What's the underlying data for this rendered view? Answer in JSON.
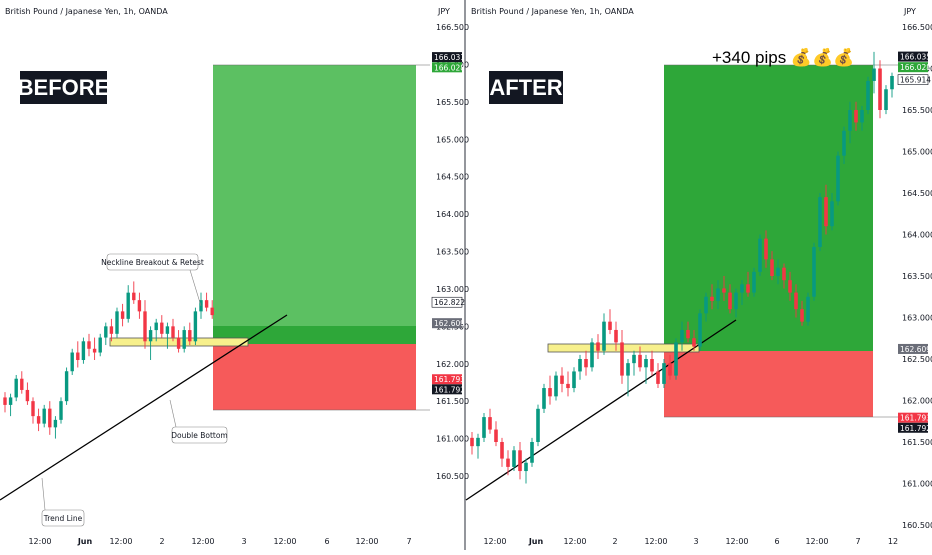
{
  "colors": {
    "up": "#089981",
    "down": "#f23645",
    "tp_zone_before": "#5cc062",
    "tp_zone_after": "#2ea739",
    "sl_zone": "#f65a5a",
    "neckline_fill": "#f7f08c",
    "badge_dark": "#131722",
    "badge_green": "#2ea739",
    "badge_red": "#f23645",
    "badge_gray": "#6a6d78"
  },
  "left_panel": {
    "title": "British Pound / Japanese Yen, 1h, OANDA",
    "currency": "JPY",
    "label": "BEFORE",
    "annotations": {
      "neckline": "Neckline Breakout & Retest",
      "double_bottom": "Double Bottom",
      "trend_line": "Trend Line"
    },
    "badges": {
      "tp_top": "166.031",
      "tp": "166.028",
      "entry_upper": "162.822",
      "entry": "162.609",
      "sl": "161.793",
      "sl_low": "161.792"
    }
  },
  "right_panel": {
    "title": "British Pound / Japanese Yen, 1h, OANDA",
    "currency": "JPY",
    "label": "AFTER",
    "headline": "+340 pips 💰💰💰",
    "badges": {
      "high": "166.035",
      "tp": "166.028",
      "last": "165.914",
      "entry": "162.609",
      "sl": "161.793",
      "sl_low": "161.792"
    }
  },
  "chart_data": [
    {
      "type": "candlestick",
      "title": "British Pound / Japanese Yen, 1h, OANDA",
      "y_unit": "JPY",
      "ylim": [
        160.3,
        166.7
      ],
      "y_ticks": [
        166.5,
        166.0,
        165.5,
        165.0,
        164.5,
        164.0,
        163.5,
        163.0,
        162.5,
        162.0,
        161.5,
        161.0,
        160.5
      ],
      "x_ticks": [
        "12:00",
        "Jun",
        "12:00",
        "2",
        "12:00",
        "3",
        "12:00",
        "6",
        "12:00",
        "7"
      ],
      "long_position": {
        "take_profit": 166.031,
        "entry": 162.609,
        "stop_loss": 161.793
      },
      "neckline_zone": [
        162.609,
        162.822
      ],
      "candles": [
        {
          "o": 161.55,
          "h": 161.62,
          "l": 161.35,
          "c": 161.45
        },
        {
          "o": 161.45,
          "h": 161.6,
          "l": 161.3,
          "c": 161.55
        },
        {
          "o": 161.55,
          "h": 161.85,
          "l": 161.5,
          "c": 161.8
        },
        {
          "o": 161.8,
          "h": 161.9,
          "l": 161.6,
          "c": 161.65
        },
        {
          "o": 161.65,
          "h": 161.75,
          "l": 161.45,
          "c": 161.5
        },
        {
          "o": 161.5,
          "h": 161.55,
          "l": 161.2,
          "c": 161.3
        },
        {
          "o": 161.3,
          "h": 161.4,
          "l": 161.1,
          "c": 161.2
        },
        {
          "o": 161.2,
          "h": 161.45,
          "l": 161.15,
          "c": 161.4
        },
        {
          "o": 161.4,
          "h": 161.5,
          "l": 161.05,
          "c": 161.15
        },
        {
          "o": 161.15,
          "h": 161.3,
          "l": 161.0,
          "c": 161.25
        },
        {
          "o": 161.25,
          "h": 161.55,
          "l": 161.2,
          "c": 161.5
        },
        {
          "o": 161.5,
          "h": 161.95,
          "l": 161.45,
          "c": 161.9
        },
        {
          "o": 161.9,
          "h": 162.2,
          "l": 161.85,
          "c": 162.15
        },
        {
          "o": 162.15,
          "h": 162.3,
          "l": 161.95,
          "c": 162.05
        },
        {
          "o": 162.05,
          "h": 162.35,
          "l": 162.0,
          "c": 162.3
        },
        {
          "o": 162.3,
          "h": 162.4,
          "l": 162.1,
          "c": 162.2
        },
        {
          "o": 162.2,
          "h": 162.35,
          "l": 162.05,
          "c": 162.15
        },
        {
          "o": 162.15,
          "h": 162.4,
          "l": 162.1,
          "c": 162.35
        },
        {
          "o": 162.35,
          "h": 162.55,
          "l": 162.25,
          "c": 162.5
        },
        {
          "o": 162.5,
          "h": 162.6,
          "l": 162.3,
          "c": 162.4
        },
        {
          "o": 162.4,
          "h": 162.75,
          "l": 162.35,
          "c": 162.7
        },
        {
          "o": 162.7,
          "h": 162.8,
          "l": 162.5,
          "c": 162.6
        },
        {
          "o": 162.6,
          "h": 163.05,
          "l": 162.55,
          "c": 162.95
        },
        {
          "o": 162.95,
          "h": 163.1,
          "l": 162.8,
          "c": 162.85
        },
        {
          "o": 162.85,
          "h": 162.95,
          "l": 162.6,
          "c": 162.7
        },
        {
          "o": 162.7,
          "h": 162.85,
          "l": 162.2,
          "c": 162.3
        },
        {
          "o": 162.3,
          "h": 162.5,
          "l": 162.05,
          "c": 162.45
        },
        {
          "o": 162.45,
          "h": 162.6,
          "l": 162.3,
          "c": 162.55
        },
        {
          "o": 162.55,
          "h": 162.65,
          "l": 162.35,
          "c": 162.4
        },
        {
          "o": 162.4,
          "h": 162.55,
          "l": 162.2,
          "c": 162.5
        },
        {
          "o": 162.5,
          "h": 162.6,
          "l": 162.3,
          "c": 162.35
        },
        {
          "o": 162.35,
          "h": 162.45,
          "l": 162.15,
          "c": 162.2
        },
        {
          "o": 162.2,
          "h": 162.5,
          "l": 162.15,
          "c": 162.45
        },
        {
          "o": 162.45,
          "h": 162.55,
          "l": 162.25,
          "c": 162.3
        },
        {
          "o": 162.3,
          "h": 162.75,
          "l": 162.25,
          "c": 162.7
        },
        {
          "o": 162.7,
          "h": 162.95,
          "l": 162.6,
          "c": 162.85
        },
        {
          "o": 162.85,
          "h": 162.95,
          "l": 162.7,
          "c": 162.75
        },
        {
          "o": 162.75,
          "h": 162.85,
          "l": 162.6,
          "c": 162.65
        }
      ]
    },
    {
      "type": "candlestick",
      "title": "British Pound / Japanese Yen, 1h, OANDA",
      "y_unit": "JPY",
      "ylim": [
        160.3,
        166.7
      ],
      "y_ticks": [
        166.5,
        166.0,
        165.5,
        165.0,
        164.5,
        164.0,
        163.5,
        163.0,
        162.5,
        162.0,
        161.5,
        161.0,
        160.5
      ],
      "x_ticks": [
        "12:00",
        "Jun",
        "12:00",
        "2",
        "12:00",
        "3",
        "12:00",
        "6",
        "12:00",
        "7",
        "12"
      ],
      "long_position": {
        "take_profit": 166.028,
        "entry": 162.609,
        "stop_loss": 161.793
      },
      "neckline_zone": [
        162.609,
        162.822
      ],
      "candles": [
        {
          "o": 161.55,
          "h": 161.62,
          "l": 161.35,
          "c": 161.45
        },
        {
          "o": 161.45,
          "h": 161.6,
          "l": 161.3,
          "c": 161.55
        },
        {
          "o": 161.55,
          "h": 161.85,
          "l": 161.5,
          "c": 161.8
        },
        {
          "o": 161.8,
          "h": 161.9,
          "l": 161.6,
          "c": 161.65
        },
        {
          "o": 161.65,
          "h": 161.75,
          "l": 161.45,
          "c": 161.5
        },
        {
          "o": 161.5,
          "h": 161.55,
          "l": 161.2,
          "c": 161.3
        },
        {
          "o": 161.3,
          "h": 161.4,
          "l": 161.1,
          "c": 161.2
        },
        {
          "o": 161.2,
          "h": 161.45,
          "l": 161.15,
          "c": 161.4
        },
        {
          "o": 161.4,
          "h": 161.5,
          "l": 161.05,
          "c": 161.15
        },
        {
          "o": 161.15,
          "h": 161.3,
          "l": 161.0,
          "c": 161.25
        },
        {
          "o": 161.25,
          "h": 161.55,
          "l": 161.2,
          "c": 161.5
        },
        {
          "o": 161.5,
          "h": 161.95,
          "l": 161.45,
          "c": 161.9
        },
        {
          "o": 161.9,
          "h": 162.2,
          "l": 161.85,
          "c": 162.15
        },
        {
          "o": 162.15,
          "h": 162.3,
          "l": 161.95,
          "c": 162.05
        },
        {
          "o": 162.05,
          "h": 162.35,
          "l": 162.0,
          "c": 162.3
        },
        {
          "o": 162.3,
          "h": 162.4,
          "l": 162.1,
          "c": 162.2
        },
        {
          "o": 162.2,
          "h": 162.35,
          "l": 162.05,
          "c": 162.15
        },
        {
          "o": 162.15,
          "h": 162.4,
          "l": 162.1,
          "c": 162.35
        },
        {
          "o": 162.35,
          "h": 162.55,
          "l": 162.25,
          "c": 162.5
        },
        {
          "o": 162.5,
          "h": 162.6,
          "l": 162.3,
          "c": 162.4
        },
        {
          "o": 162.4,
          "h": 162.75,
          "l": 162.35,
          "c": 162.7
        },
        {
          "o": 162.7,
          "h": 162.8,
          "l": 162.5,
          "c": 162.6
        },
        {
          "o": 162.6,
          "h": 163.05,
          "l": 162.55,
          "c": 162.95
        },
        {
          "o": 162.95,
          "h": 163.1,
          "l": 162.8,
          "c": 162.85
        },
        {
          "o": 162.85,
          "h": 162.95,
          "l": 162.6,
          "c": 162.7
        },
        {
          "o": 162.7,
          "h": 162.85,
          "l": 162.2,
          "c": 162.3
        },
        {
          "o": 162.3,
          "h": 162.5,
          "l": 162.05,
          "c": 162.45
        },
        {
          "o": 162.45,
          "h": 162.6,
          "l": 162.3,
          "c": 162.55
        },
        {
          "o": 162.55,
          "h": 162.65,
          "l": 162.35,
          "c": 162.4
        },
        {
          "o": 162.4,
          "h": 162.55,
          "l": 162.2,
          "c": 162.5
        },
        {
          "o": 162.5,
          "h": 162.6,
          "l": 162.3,
          "c": 162.35
        },
        {
          "o": 162.35,
          "h": 162.45,
          "l": 162.15,
          "c": 162.2
        },
        {
          "o": 162.2,
          "h": 162.5,
          "l": 162.15,
          "c": 162.45
        },
        {
          "o": 162.45,
          "h": 162.55,
          "l": 162.25,
          "c": 162.3
        },
        {
          "o": 162.3,
          "h": 162.75,
          "l": 162.25,
          "c": 162.7
        },
        {
          "o": 162.7,
          "h": 162.95,
          "l": 162.6,
          "c": 162.85
        },
        {
          "o": 162.85,
          "h": 162.95,
          "l": 162.7,
          "c": 162.75
        },
        {
          "o": 162.75,
          "h": 162.85,
          "l": 162.6,
          "c": 162.65
        },
        {
          "o": 162.65,
          "h": 163.1,
          "l": 162.6,
          "c": 163.05
        },
        {
          "o": 163.05,
          "h": 163.3,
          "l": 162.95,
          "c": 163.25
        },
        {
          "o": 163.25,
          "h": 163.4,
          "l": 163.1,
          "c": 163.2
        },
        {
          "o": 163.2,
          "h": 163.45,
          "l": 163.1,
          "c": 163.35
        },
        {
          "o": 163.35,
          "h": 163.5,
          "l": 163.2,
          "c": 163.3
        },
        {
          "o": 163.3,
          "h": 163.4,
          "l": 163.05,
          "c": 163.1
        },
        {
          "o": 163.1,
          "h": 163.35,
          "l": 163.0,
          "c": 163.3
        },
        {
          "o": 163.3,
          "h": 163.45,
          "l": 163.15,
          "c": 163.4
        },
        {
          "o": 163.4,
          "h": 163.55,
          "l": 163.25,
          "c": 163.3
        },
        {
          "o": 163.3,
          "h": 163.6,
          "l": 163.25,
          "c": 163.55
        },
        {
          "o": 163.55,
          "h": 164.0,
          "l": 163.5,
          "c": 163.95
        },
        {
          "o": 163.95,
          "h": 164.05,
          "l": 163.6,
          "c": 163.7
        },
        {
          "o": 163.7,
          "h": 163.8,
          "l": 163.45,
          "c": 163.5
        },
        {
          "o": 163.5,
          "h": 163.7,
          "l": 163.4,
          "c": 163.6
        },
        {
          "o": 163.6,
          "h": 163.65,
          "l": 163.35,
          "c": 163.45
        },
        {
          "o": 163.45,
          "h": 163.55,
          "l": 163.2,
          "c": 163.3
        },
        {
          "o": 163.3,
          "h": 163.4,
          "l": 163.0,
          "c": 163.1
        },
        {
          "o": 163.1,
          "h": 163.2,
          "l": 162.9,
          "c": 162.95
        },
        {
          "o": 162.95,
          "h": 163.3,
          "l": 162.9,
          "c": 163.25
        },
        {
          "o": 163.25,
          "h": 163.9,
          "l": 163.2,
          "c": 163.85
        },
        {
          "o": 163.85,
          "h": 164.5,
          "l": 163.8,
          "c": 164.45
        },
        {
          "o": 164.45,
          "h": 164.6,
          "l": 164.0,
          "c": 164.1
        },
        {
          "o": 164.1,
          "h": 164.5,
          "l": 164.05,
          "c": 164.4
        },
        {
          "o": 164.4,
          "h": 165.0,
          "l": 164.35,
          "c": 164.95
        },
        {
          "o": 164.95,
          "h": 165.3,
          "l": 164.85,
          "c": 165.25
        },
        {
          "o": 165.25,
          "h": 165.6,
          "l": 165.1,
          "c": 165.5
        },
        {
          "o": 165.5,
          "h": 165.6,
          "l": 165.25,
          "c": 165.35
        },
        {
          "o": 165.35,
          "h": 165.55,
          "l": 165.25,
          "c": 165.5
        },
        {
          "o": 165.5,
          "h": 165.9,
          "l": 165.45,
          "c": 165.85
        },
        {
          "o": 165.85,
          "h": 166.2,
          "l": 165.7,
          "c": 166.0
        },
        {
          "o": 166.0,
          "h": 166.1,
          "l": 165.4,
          "c": 165.5
        },
        {
          "o": 165.5,
          "h": 165.8,
          "l": 165.45,
          "c": 165.75
        },
        {
          "o": 165.75,
          "h": 165.95,
          "l": 165.65,
          "c": 165.91
        }
      ]
    }
  ]
}
